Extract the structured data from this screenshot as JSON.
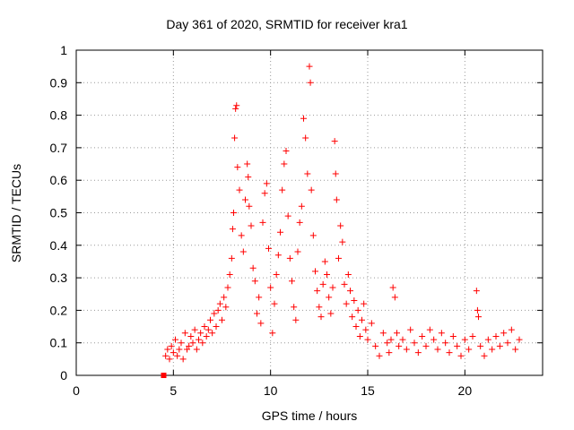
{
  "chart_data": {
    "type": "scatter",
    "title": "Day 361 of 2020, SRMTID for receiver kra1",
    "xlabel": "GPS time / hours",
    "ylabel": "SRMTID / TECUs",
    "xlim": [
      0,
      24
    ],
    "ylim": [
      0,
      1
    ],
    "xticks": [
      "0",
      "5",
      "10",
      "15",
      "20"
    ],
    "yticks": [
      "0",
      "0.1",
      "0.2",
      "0.3",
      "0.4",
      "0.5",
      "0.6",
      "0.7",
      "0.8",
      "0.9",
      "1"
    ],
    "grid": true,
    "marker": "plus",
    "color": "#ff0000",
    "square_marker": {
      "x": 4.5,
      "y": 0.0
    },
    "series": [
      {
        "name": "kra1",
        "points": [
          [
            4.6,
            0.06
          ],
          [
            4.7,
            0.08
          ],
          [
            4.8,
            0.05
          ],
          [
            4.9,
            0.09
          ],
          [
            5.0,
            0.07
          ],
          [
            5.1,
            0.11
          ],
          [
            5.2,
            0.06
          ],
          [
            5.3,
            0.08
          ],
          [
            5.4,
            0.1
          ],
          [
            5.5,
            0.05
          ],
          [
            5.6,
            0.13
          ],
          [
            5.7,
            0.08
          ],
          [
            5.8,
            0.09
          ],
          [
            5.9,
            0.12
          ],
          [
            6.0,
            0.1
          ],
          [
            6.1,
            0.14
          ],
          [
            6.2,
            0.08
          ],
          [
            6.3,
            0.11
          ],
          [
            6.4,
            0.13
          ],
          [
            6.5,
            0.1
          ],
          [
            6.6,
            0.15
          ],
          [
            6.7,
            0.12
          ],
          [
            6.8,
            0.14
          ],
          [
            6.9,
            0.17
          ],
          [
            7.0,
            0.13
          ],
          [
            7.1,
            0.19
          ],
          [
            7.2,
            0.15
          ],
          [
            7.3,
            0.2
          ],
          [
            7.4,
            0.22
          ],
          [
            7.5,
            0.17
          ],
          [
            7.6,
            0.24
          ],
          [
            7.7,
            0.21
          ],
          [
            7.8,
            0.27
          ],
          [
            7.9,
            0.31
          ],
          [
            8.0,
            0.36
          ],
          [
            8.05,
            0.45
          ],
          [
            8.1,
            0.5
          ],
          [
            8.15,
            0.73
          ],
          [
            8.2,
            0.82
          ],
          [
            8.25,
            0.83
          ],
          [
            8.3,
            0.64
          ],
          [
            8.4,
            0.57
          ],
          [
            8.5,
            0.43
          ],
          [
            8.6,
            0.38
          ],
          [
            8.7,
            0.54
          ],
          [
            8.8,
            0.65
          ],
          [
            8.85,
            0.61
          ],
          [
            8.9,
            0.52
          ],
          [
            9.0,
            0.46
          ],
          [
            9.1,
            0.33
          ],
          [
            9.2,
            0.29
          ],
          [
            9.3,
            0.19
          ],
          [
            9.4,
            0.24
          ],
          [
            9.5,
            0.16
          ],
          [
            9.6,
            0.47
          ],
          [
            9.7,
            0.56
          ],
          [
            9.8,
            0.59
          ],
          [
            9.9,
            0.39
          ],
          [
            10.0,
            0.27
          ],
          [
            10.1,
            0.13
          ],
          [
            10.2,
            0.22
          ],
          [
            10.3,
            0.31
          ],
          [
            10.4,
            0.37
          ],
          [
            10.5,
            0.44
          ],
          [
            10.6,
            0.57
          ],
          [
            10.7,
            0.65
          ],
          [
            10.8,
            0.69
          ],
          [
            10.9,
            0.49
          ],
          [
            11.0,
            0.36
          ],
          [
            11.1,
            0.29
          ],
          [
            11.2,
            0.21
          ],
          [
            11.3,
            0.17
          ],
          [
            11.4,
            0.38
          ],
          [
            11.5,
            0.47
          ],
          [
            11.6,
            0.52
          ],
          [
            11.7,
            0.79
          ],
          [
            11.8,
            0.73
          ],
          [
            11.9,
            0.62
          ],
          [
            12.0,
            0.95
          ],
          [
            12.05,
            0.9
          ],
          [
            12.1,
            0.57
          ],
          [
            12.2,
            0.43
          ],
          [
            12.3,
            0.32
          ],
          [
            12.4,
            0.26
          ],
          [
            12.5,
            0.21
          ],
          [
            12.6,
            0.18
          ],
          [
            12.7,
            0.28
          ],
          [
            12.8,
            0.35
          ],
          [
            12.9,
            0.31
          ],
          [
            13.0,
            0.24
          ],
          [
            13.1,
            0.19
          ],
          [
            13.2,
            0.27
          ],
          [
            13.3,
            0.72
          ],
          [
            13.35,
            0.62
          ],
          [
            13.4,
            0.54
          ],
          [
            13.5,
            0.36
          ],
          [
            13.6,
            0.46
          ],
          [
            13.7,
            0.41
          ],
          [
            13.8,
            0.28
          ],
          [
            13.9,
            0.22
          ],
          [
            14.0,
            0.31
          ],
          [
            14.1,
            0.26
          ],
          [
            14.2,
            0.18
          ],
          [
            14.3,
            0.23
          ],
          [
            14.4,
            0.15
          ],
          [
            14.5,
            0.2
          ],
          [
            14.6,
            0.12
          ],
          [
            14.7,
            0.17
          ],
          [
            14.8,
            0.22
          ],
          [
            14.9,
            0.14
          ],
          [
            15.0,
            0.11
          ],
          [
            15.2,
            0.16
          ],
          [
            15.4,
            0.09
          ],
          [
            15.6,
            0.06
          ],
          [
            15.8,
            0.13
          ],
          [
            16.0,
            0.1
          ],
          [
            16.1,
            0.07
          ],
          [
            16.2,
            0.11
          ],
          [
            16.3,
            0.27
          ],
          [
            16.4,
            0.24
          ],
          [
            16.5,
            0.13
          ],
          [
            16.6,
            0.09
          ],
          [
            16.8,
            0.11
          ],
          [
            17.0,
            0.08
          ],
          [
            17.2,
            0.14
          ],
          [
            17.4,
            0.1
          ],
          [
            17.6,
            0.07
          ],
          [
            17.8,
            0.12
          ],
          [
            18.0,
            0.09
          ],
          [
            18.2,
            0.14
          ],
          [
            18.4,
            0.11
          ],
          [
            18.6,
            0.08
          ],
          [
            18.8,
            0.13
          ],
          [
            19.0,
            0.1
          ],
          [
            19.2,
            0.07
          ],
          [
            19.4,
            0.12
          ],
          [
            19.6,
            0.09
          ],
          [
            19.8,
            0.06
          ],
          [
            20.0,
            0.11
          ],
          [
            20.2,
            0.08
          ],
          [
            20.4,
            0.12
          ],
          [
            20.6,
            0.26
          ],
          [
            20.65,
            0.2
          ],
          [
            20.7,
            0.18
          ],
          [
            20.8,
            0.09
          ],
          [
            21.0,
            0.06
          ],
          [
            21.2,
            0.11
          ],
          [
            21.4,
            0.08
          ],
          [
            21.6,
            0.12
          ],
          [
            21.8,
            0.09
          ],
          [
            22.0,
            0.13
          ],
          [
            22.2,
            0.1
          ],
          [
            22.4,
            0.14
          ],
          [
            22.6,
            0.08
          ],
          [
            22.8,
            0.11
          ]
        ]
      }
    ]
  }
}
